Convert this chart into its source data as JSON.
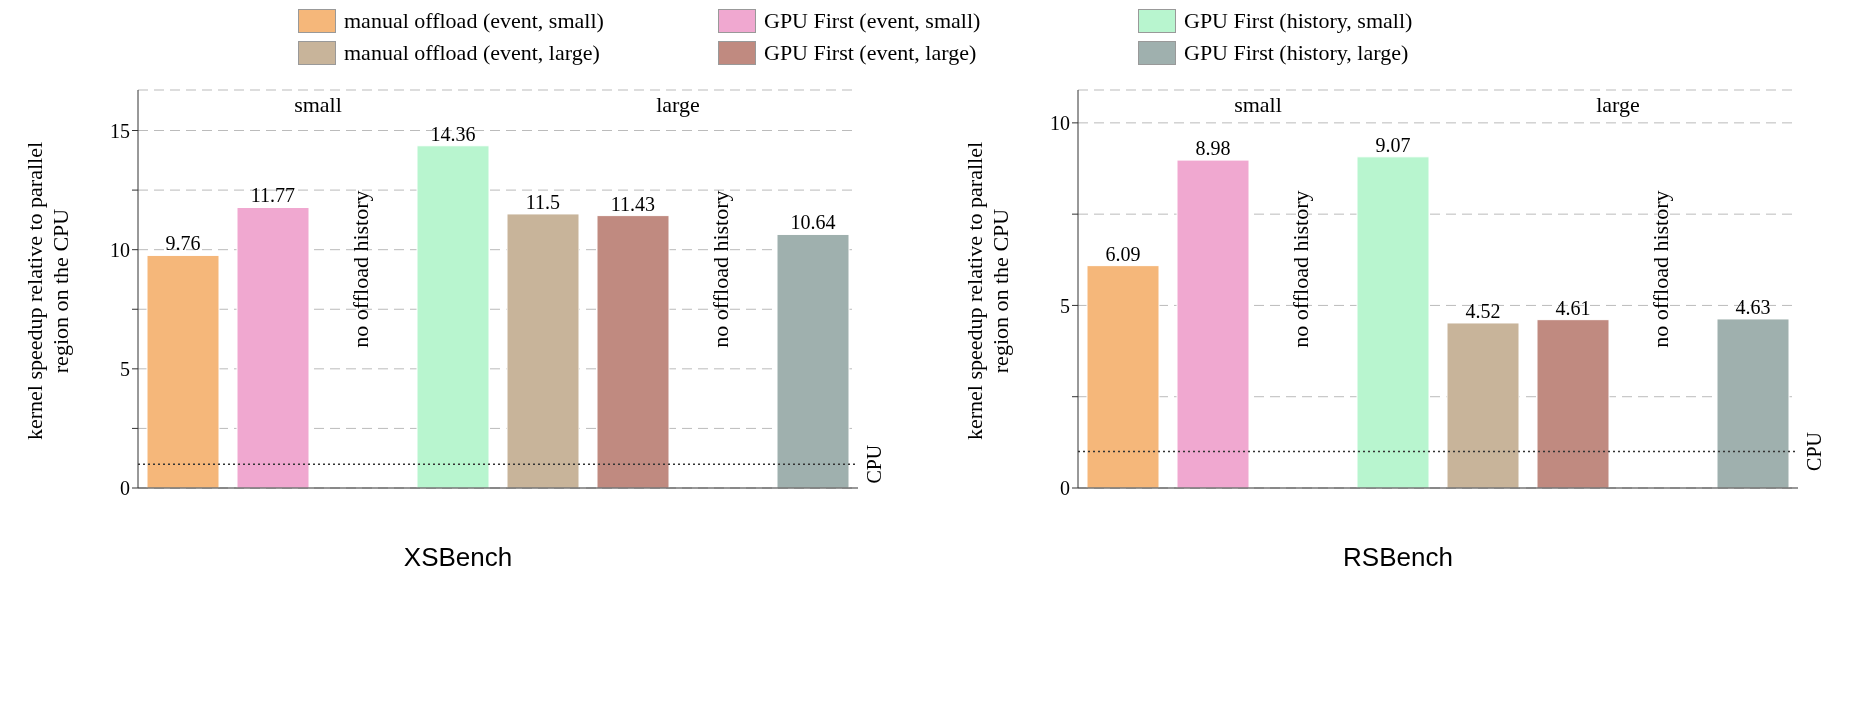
{
  "chart_data": [
    {
      "type": "bar",
      "title": "XSBench",
      "ylabel": "kernel speedup relative to parallel region on the CPU",
      "categories": [
        null,
        null,
        null,
        null,
        null,
        null,
        null,
        null
      ],
      "series": [
        {
          "name": "manual offload (event, small)",
          "color": "#f5b77a",
          "values": [
            9.76,
            null,
            null,
            null,
            null,
            null,
            null,
            null
          ]
        },
        {
          "name": "GPU First (event, small)",
          "color": "#f0a8d0",
          "values": [
            null,
            11.77,
            null,
            null,
            null,
            null,
            null,
            null
          ]
        },
        {
          "name": "GPU First (history, small)",
          "color": "#b8f5cf",
          "values": [
            null,
            null,
            null,
            14.36,
            null,
            null,
            null,
            null
          ]
        },
        {
          "name": "manual offload (event, large)",
          "color": "#c8b49a",
          "values": [
            null,
            null,
            null,
            null,
            11.5,
            null,
            null,
            null
          ]
        },
        {
          "name": "GPU First (event, large)",
          "color": "#c08a80",
          "values": [
            null,
            null,
            null,
            null,
            null,
            11.43,
            null,
            null
          ]
        },
        {
          "name": "GPU First (history, large)",
          "color": "#9fb0ae",
          "values": [
            null,
            null,
            null,
            null,
            null,
            null,
            null,
            10.64
          ]
        }
      ],
      "ylim": [
        0,
        16.7
      ],
      "yticks": [
        0,
        {
          "value": 2.5,
          "label": null
        },
        5,
        {
          "value": 7.5,
          "label": null
        },
        10,
        {
          "value": 12.5,
          "label": null
        },
        15
      ],
      "grid": "y",
      "legend": "top",
      "data_labels": true,
      "ref_lines": [
        {
          "axis": "y",
          "value": 1,
          "label": "CPU",
          "line_style": "dotted"
        }
      ],
      "annotations": [
        "small",
        "large",
        "no offload history",
        "no offload history"
      ]
    },
    {
      "type": "bar",
      "title": "RSBench",
      "ylabel": "kernel speedup relative to parallel region on the CPU",
      "categories": [
        null,
        null,
        null,
        null,
        null,
        null,
        null,
        null
      ],
      "series": [
        {
          "color": "#f5b77a",
          "values": [
            6.09,
            null,
            null,
            null,
            null,
            null,
            null,
            null
          ]
        },
        {
          "color": "#f0a8d0",
          "values": [
            null,
            8.98,
            null,
            null,
            null,
            null,
            null,
            null
          ]
        },
        {
          "color": "#b8f5cf",
          "values": [
            null,
            null,
            null,
            9.07,
            null,
            null,
            null,
            null
          ]
        },
        {
          "color": "#c8b49a",
          "values": [
            null,
            null,
            null,
            null,
            4.52,
            null,
            null,
            null
          ]
        },
        {
          "color": "#c08a80",
          "values": [
            null,
            null,
            null,
            null,
            null,
            4.61,
            null,
            null
          ]
        },
        {
          "color": "#9fb0ae",
          "values": [
            null,
            null,
            null,
            null,
            null,
            null,
            null,
            4.63
          ]
        }
      ],
      "ylim": [
        0,
        10.9
      ],
      "yticks": [
        0,
        {
          "value": 2.5,
          "label": null
        },
        5,
        {
          "value": 7.5,
          "label": null
        },
        10
      ],
      "grid": "y",
      "data_labels": true,
      "ref_lines": [
        {
          "axis": "y",
          "value": 1,
          "label": "CPU",
          "line_style": "dotted"
        }
      ],
      "annotations": [
        "small",
        "large",
        "no offload history",
        "no offload history"
      ]
    }
  ]
}
